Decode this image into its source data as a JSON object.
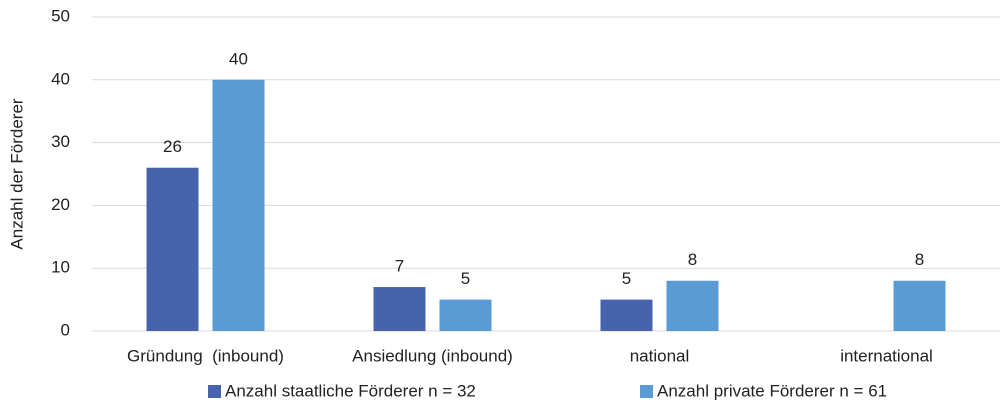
{
  "chart_data": {
    "type": "bar",
    "y_label": "Anzahl der Förderer",
    "categories": [
      "Gründung  (inbound)",
      "Ansiedlung (inbound)",
      "national",
      "international"
    ],
    "series": [
      {
        "name": "Anzahl staatliche Förderer n = 32",
        "color": "#4763ae",
        "values": [
          26,
          7,
          5,
          null
        ]
      },
      {
        "name": "Anzahl private Förderer n = 61",
        "color": "#5b9bd5",
        "values": [
          40,
          5,
          8,
          8
        ]
      }
    ],
    "ylim": [
      0,
      50
    ],
    "yticks": [
      0,
      10,
      20,
      30,
      40,
      50
    ],
    "grid": true,
    "legend": "bottom"
  }
}
